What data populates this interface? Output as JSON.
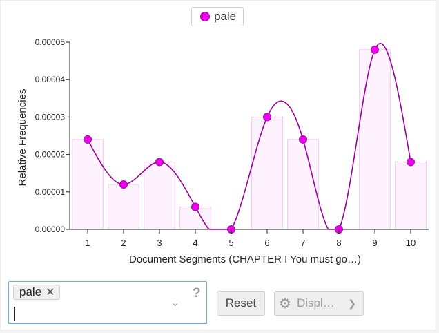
{
  "legend": {
    "label": "pale",
    "color": "#ee00ee"
  },
  "chart_data": {
    "type": "bar",
    "categories": [
      "1",
      "2",
      "3",
      "4",
      "5",
      "6",
      "7",
      "8",
      "9",
      "10"
    ],
    "series": [
      {
        "name": "pale",
        "values": [
          2.4e-05,
          1.2e-05,
          1.8e-05,
          6e-06,
          0.0,
          3e-05,
          2.4e-05,
          0.0,
          4.8e-05,
          1.8e-05
        ]
      }
    ],
    "overlay": "smoothed line with point markers",
    "xlabel": "Document Segments (CHAPTER I You must go…)",
    "ylabel": "Relative Frequencies",
    "ylim": [
      0,
      5e-05
    ],
    "yticks": [
      "0.00000",
      "0.00001",
      "0.00002",
      "0.00003",
      "0.00004",
      "0.00005"
    ],
    "colors": {
      "marker": "#ee00ee",
      "line": "#990099",
      "bar_fill": "#fdf2fd",
      "bar_stroke": "#f0c8f0"
    }
  },
  "term_box": {
    "chip": "pale",
    "chip_remove": "✕",
    "help": "?",
    "input_value": ""
  },
  "buttons": {
    "reset": "Reset",
    "display": "Displ…"
  }
}
